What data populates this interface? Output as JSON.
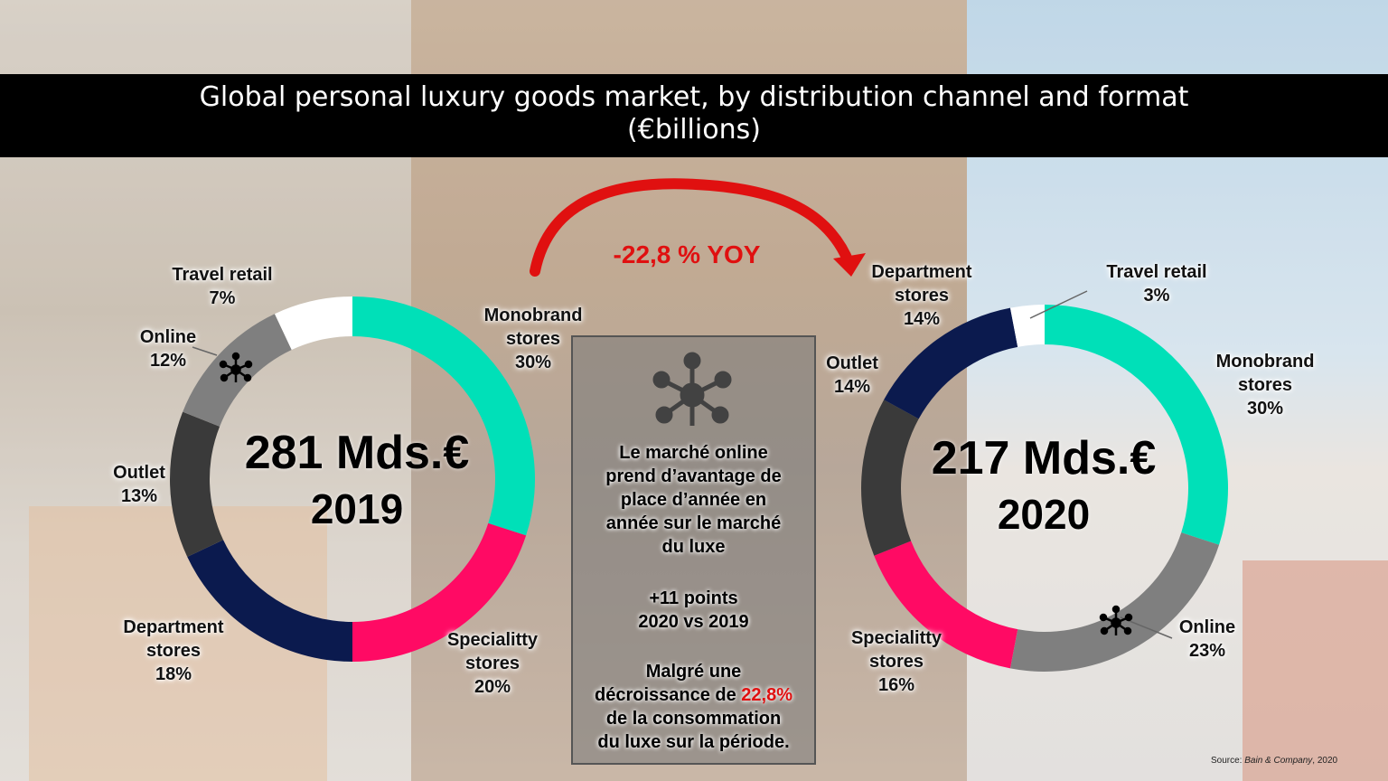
{
  "title": {
    "line1": "Global personal luxury goods market, by distribution channel and format",
    "line2": "(€billions)"
  },
  "yoy_label": "-22,8 % YOY",
  "colors": {
    "monobrand": "#00e0b8",
    "speciality": "#ff0a64",
    "department": "#0b1a4e",
    "outlet": "#3a3a3a",
    "online": "#7f7f7f",
    "travel": "#ffffff",
    "accent_red": "#e01010"
  },
  "chart_data": [
    {
      "type": "pie",
      "variant": "donut",
      "center_value": "281 Mds.€",
      "center_year": "2019",
      "slices": [
        {
          "key": "monobrand",
          "line1": "Monobrand",
          "line2": "stores",
          "pct_label": "30%",
          "value": 30
        },
        {
          "key": "speciality",
          "line1": "Specialitty",
          "line2": "stores",
          "pct_label": "20%",
          "value": 20
        },
        {
          "key": "department",
          "line1": "Department",
          "line2": "stores",
          "pct_label": "18%",
          "value": 18
        },
        {
          "key": "outlet",
          "line1": "Outlet",
          "line2": "",
          "pct_label": "13%",
          "value": 13
        },
        {
          "key": "online",
          "line1": "Online",
          "line2": "",
          "pct_label": "12%",
          "value": 12
        },
        {
          "key": "travel",
          "line1": "Travel retail",
          "line2": "",
          "pct_label": "7%",
          "value": 7
        }
      ]
    },
    {
      "type": "pie",
      "variant": "donut",
      "center_value": "217 Mds.€",
      "center_year": "2020",
      "slices": [
        {
          "key": "monobrand",
          "line1": "Monobrand",
          "line2": "stores",
          "pct_label": "30%",
          "value": 30
        },
        {
          "key": "online",
          "line1": "Online",
          "line2": "",
          "pct_label": "23%",
          "value": 23
        },
        {
          "key": "speciality",
          "line1": "Specialitty",
          "line2": "stores",
          "pct_label": "16%",
          "value": 16
        },
        {
          "key": "outlet",
          "line1": "Outlet",
          "line2": "",
          "pct_label": "14%",
          "value": 14
        },
        {
          "key": "department",
          "line1": "Department",
          "line2": "stores",
          "pct_label": "14%",
          "value": 14
        },
        {
          "key": "travel",
          "line1": "Travel retail",
          "line2": "",
          "pct_label": "3%",
          "value": 3
        }
      ]
    }
  ],
  "info_box": {
    "p1": [
      "Le marché online",
      "prend d’avantage de",
      "place d’année en",
      "année sur le marché",
      "du luxe"
    ],
    "p2": [
      "+11 points",
      "2020 vs 2019"
    ],
    "p3_line1": "Malgré une",
    "p3_line2_pre": "décroissance de ",
    "p3_line2_red": "22,8%",
    "p3_line3": "de la consommation",
    "p3_line4": "du luxe sur la période."
  },
  "source": {
    "prefix": "Source: ",
    "name": "Bain & Company",
    "suffix": ", 2020"
  }
}
